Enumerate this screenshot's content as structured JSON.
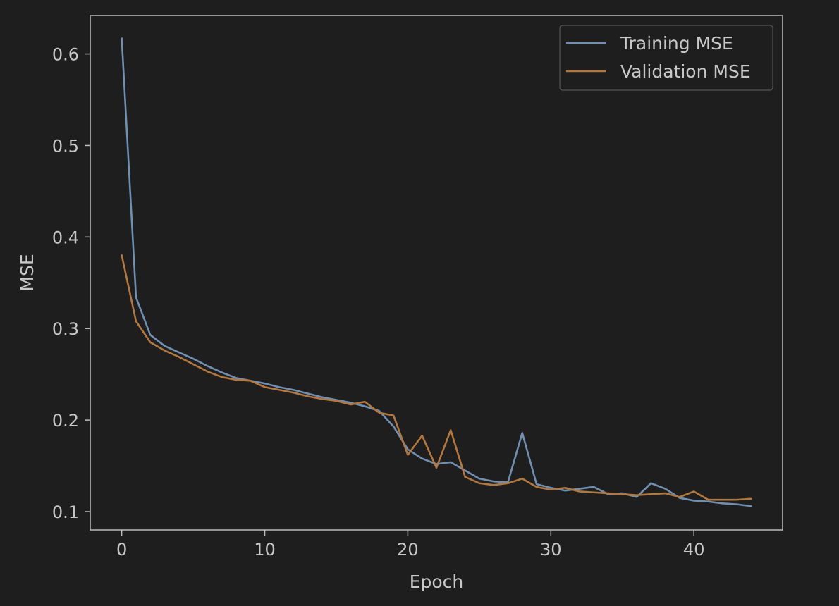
{
  "chart_data": {
    "type": "line",
    "title": "",
    "xlabel": "Epoch",
    "ylabel": "MSE",
    "xlim": [
      -2.2,
      46.2
    ],
    "ylim": [
      0.08,
      0.642
    ],
    "xticks": [
      0,
      10,
      20,
      30,
      40
    ],
    "yticks": [
      0.1,
      0.2,
      0.3,
      0.4,
      0.5,
      0.6
    ],
    "grid": false,
    "legend_position": "top-right",
    "x": [
      0,
      1,
      2,
      3,
      4,
      5,
      6,
      7,
      8,
      9,
      10,
      11,
      12,
      13,
      14,
      15,
      16,
      17,
      18,
      19,
      20,
      21,
      22,
      23,
      24,
      25,
      26,
      27,
      28,
      29,
      30,
      31,
      32,
      33,
      34,
      35,
      36,
      37,
      38,
      39,
      40,
      41,
      42,
      43,
      44
    ],
    "series": [
      {
        "name": "Training MSE",
        "color": "#6f8fb3",
        "values": [
          0.617,
          0.334,
          0.293,
          0.281,
          0.274,
          0.267,
          0.259,
          0.252,
          0.246,
          0.243,
          0.24,
          0.236,
          0.233,
          0.229,
          0.225,
          0.222,
          0.219,
          0.215,
          0.21,
          0.193,
          0.168,
          0.158,
          0.152,
          0.154,
          0.145,
          0.136,
          0.133,
          0.132,
          0.186,
          0.13,
          0.126,
          0.123,
          0.125,
          0.127,
          0.119,
          0.12,
          0.116,
          0.131,
          0.125,
          0.115,
          0.112,
          0.111,
          0.109,
          0.108,
          0.106
        ]
      },
      {
        "name": "Validation MSE",
        "color": "#b4783c",
        "values": [
          0.38,
          0.308,
          0.285,
          0.276,
          0.269,
          0.261,
          0.253,
          0.247,
          0.244,
          0.243,
          0.236,
          0.233,
          0.23,
          0.226,
          0.223,
          0.221,
          0.217,
          0.22,
          0.208,
          0.205,
          0.162,
          0.183,
          0.148,
          0.189,
          0.138,
          0.131,
          0.129,
          0.131,
          0.136,
          0.127,
          0.124,
          0.126,
          0.122,
          0.121,
          0.12,
          0.119,
          0.118,
          0.119,
          0.12,
          0.116,
          0.122,
          0.113,
          0.113,
          0.113,
          0.114
        ]
      }
    ]
  },
  "style": {
    "background": "#1e1e1e",
    "axes_color": "#bdbdbd",
    "text_color": "#c8c8c8",
    "legend_bg": "#1e1e1e",
    "legend_border": "#555555"
  }
}
